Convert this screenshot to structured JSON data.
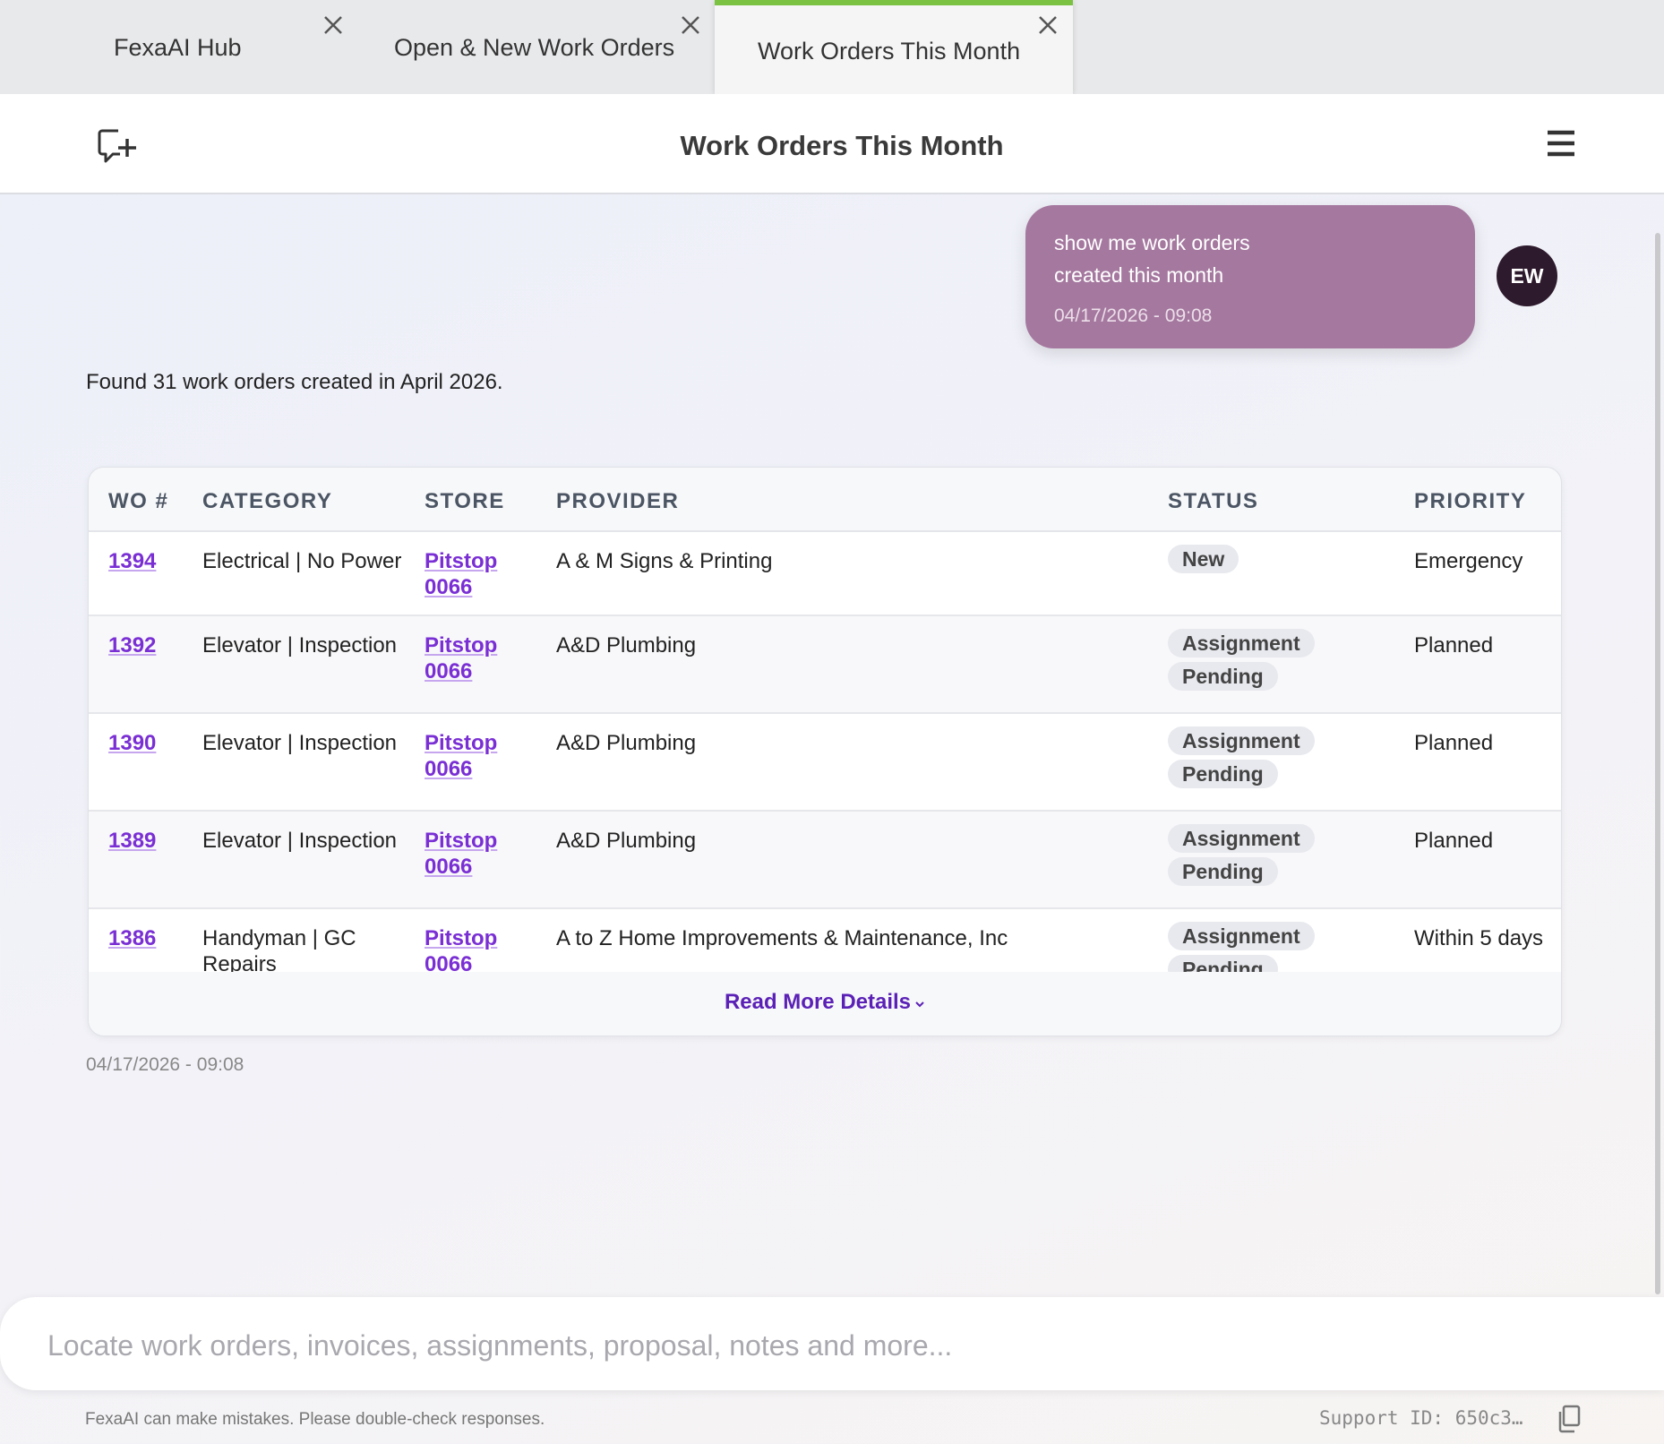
{
  "tabs": [
    "FexaAI Hub",
    "Open & New Work Orders",
    "Work Orders This Month"
  ],
  "header": {
    "title": "Work Orders This Month"
  },
  "user_message": {
    "text": "show me work orders created this month",
    "timestamp": "04/17/2026 - 09:08",
    "avatar": "EW"
  },
  "response": {
    "text": "Found 31 work orders created in April 2026.",
    "timestamp": "04/17/2026 - 09:08"
  },
  "table": {
    "columns": [
      "WO #",
      "CATEGORY",
      "STORE",
      "PROVIDER",
      "STATUS",
      "PRIORITY"
    ],
    "rows": [
      [
        "1394",
        "Electrical | No Power",
        "Pitstop 0066",
        "A & M Signs & Printing",
        "New",
        "Emergency"
      ],
      [
        "1392",
        "Elevator | Inspection",
        "Pitstop 0066",
        "A&D Plumbing",
        "Assignment Pending",
        "Planned"
      ],
      [
        "1390",
        "Elevator | Inspection",
        "Pitstop 0066",
        "A&D Plumbing",
        "Assignment Pending",
        "Planned"
      ],
      [
        "1389",
        "Elevator | Inspection",
        "Pitstop 0066",
        "A&D Plumbing",
        "Assignment Pending",
        "Planned"
      ],
      [
        "1386",
        "Handyman | GC Repairs",
        "Pitstop 0066",
        "A to Z Home Improvements & Maintenance, Inc",
        "Assignment Pending",
        "Within 5 days"
      ]
    ],
    "read_more": "Read More Details"
  },
  "input": {
    "placeholder": "Locate work orders, invoices, assignments, proposal, notes and more..."
  },
  "footer": {
    "disclaimer": "FexaAI can make mistakes. Please double-check responses.",
    "support_id": "Support ID: 650c3…"
  }
}
